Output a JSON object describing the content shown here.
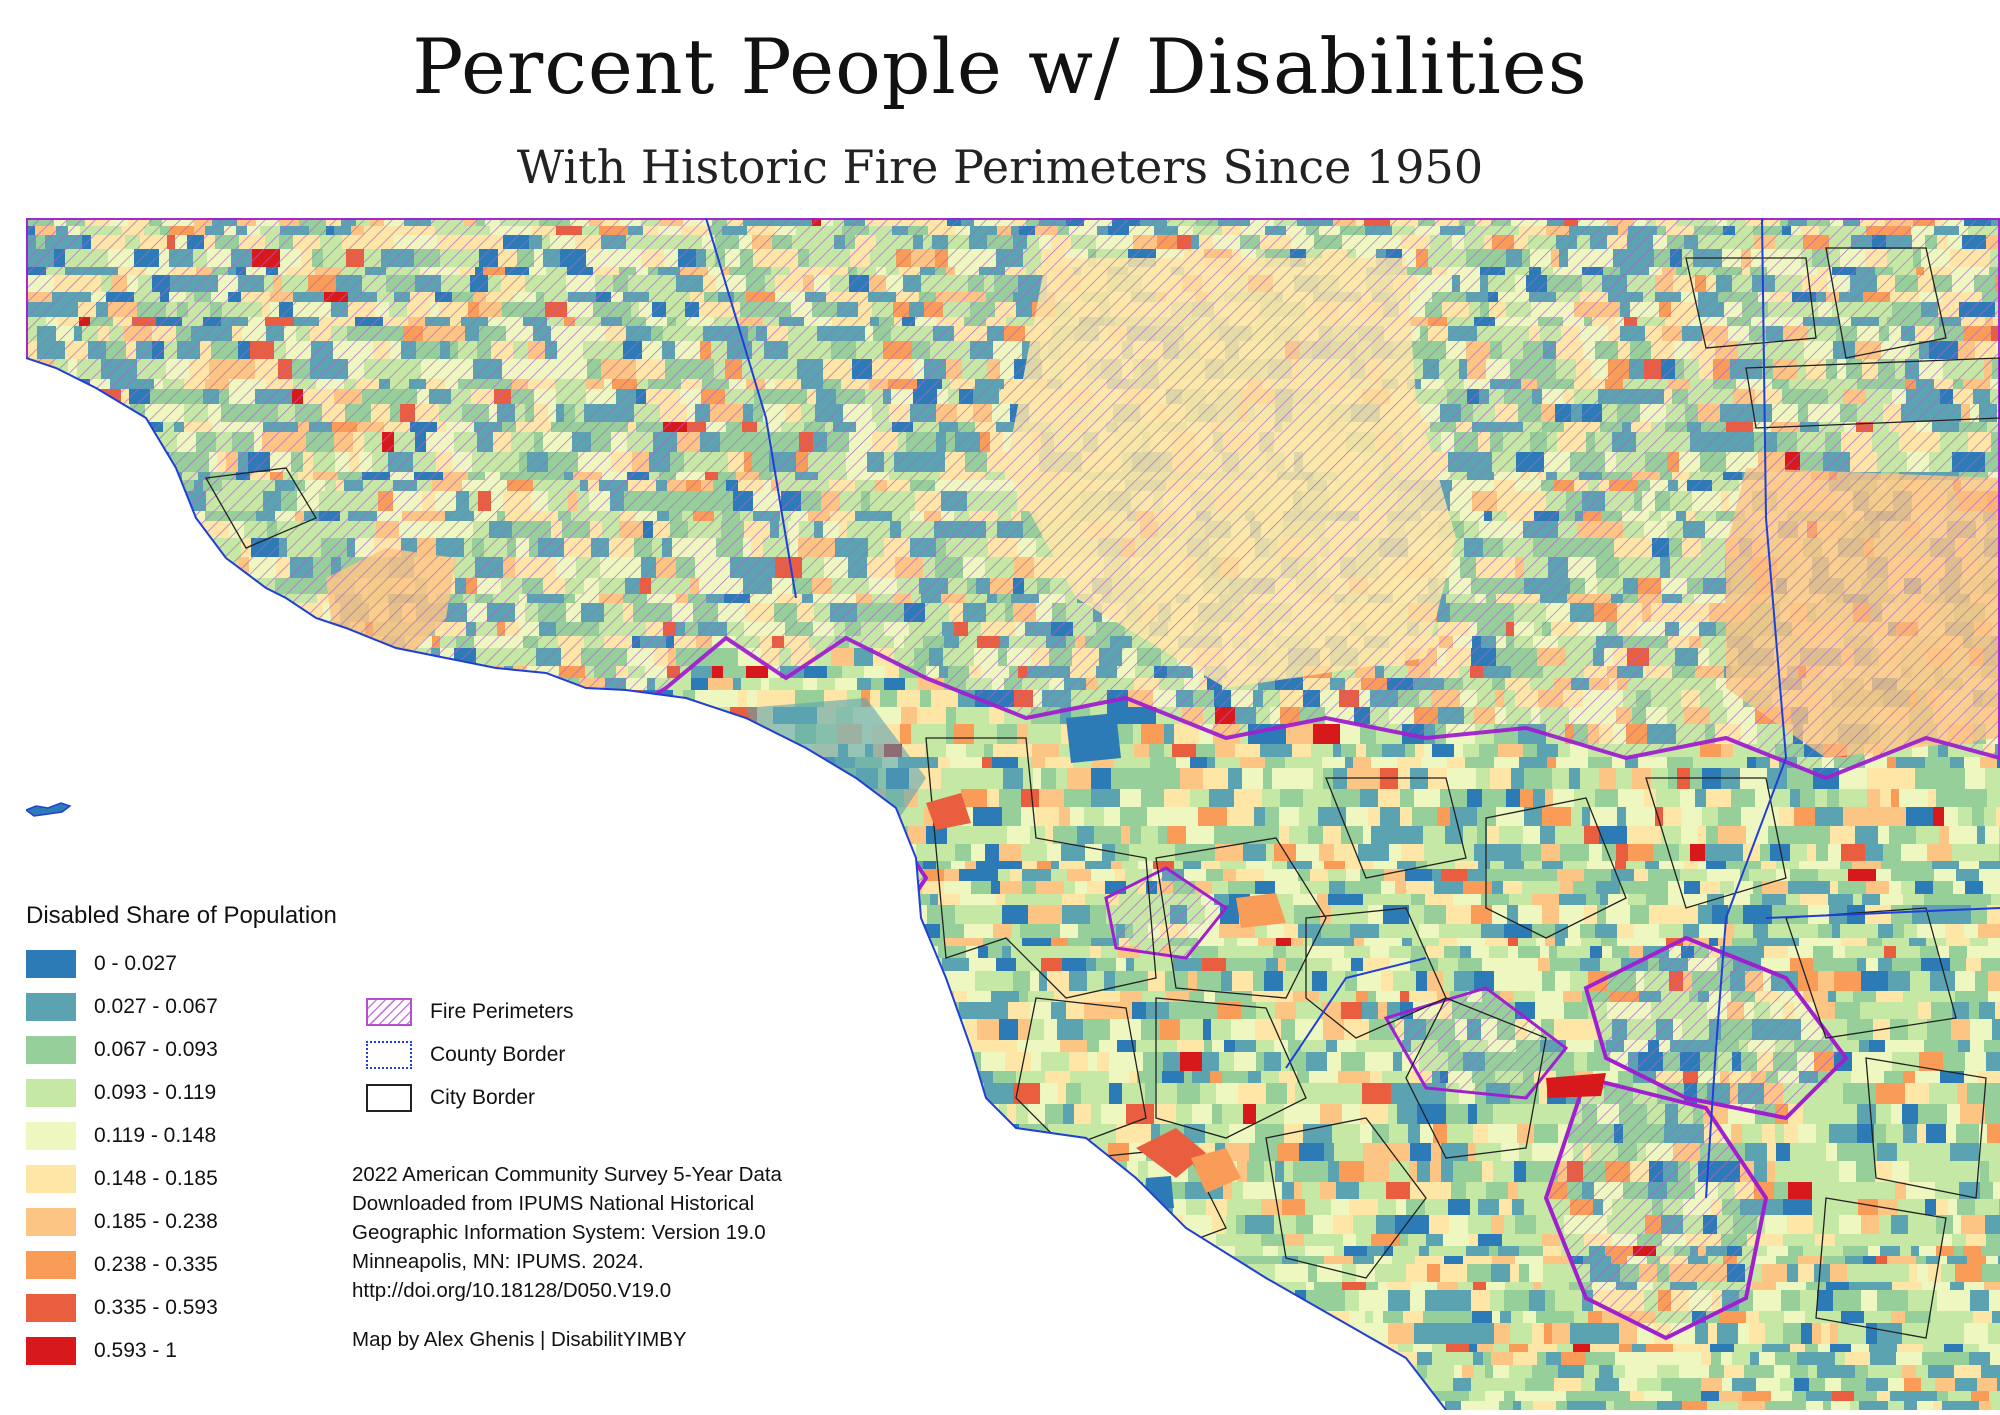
{
  "title": "Percent People w/ Disabilities",
  "subtitle": "With Historic Fire Perimeters Since 1950",
  "legend": {
    "title": "Disabled Share of Population",
    "classes": [
      {
        "label": "0 - 0.027",
        "color": "#2c7bb6"
      },
      {
        "label": "0.027 - 0.067",
        "color": "#5ba3b0"
      },
      {
        "label": "0.067 - 0.093",
        "color": "#96cf9a"
      },
      {
        "label": "0.093 - 0.119",
        "color": "#c5e8a4"
      },
      {
        "label": "0.119 - 0.148",
        "color": "#eef7c0"
      },
      {
        "label": "0.148 - 0.185",
        "color": "#fde6a6"
      },
      {
        "label": "0.185 - 0.238",
        "color": "#fdc584"
      },
      {
        "label": "0.238 - 0.335",
        "color": "#f99c58"
      },
      {
        "label": "0.335 - 0.593",
        "color": "#e85e3e"
      },
      {
        "label": "0.593 - 1",
        "color": "#d7191c"
      }
    ]
  },
  "overlay_legend": {
    "fire": "Fire Perimeters",
    "county": "County Border",
    "city": "City Border",
    "fire_color": "#a020d0",
    "county_color": "#1f3fd6",
    "city_color": "#222222"
  },
  "source": {
    "lines": [
      "2022 American Community Survey 5-Year Data",
      "Downloaded from IPUMS National Historical",
      "Geographic Information System: Version 19.0",
      "Minneapolis, MN: IPUMS. 2024.",
      "http://doi.org/10.18128/D050.V19.0"
    ]
  },
  "credit": "Map by Alex Ghenis | DisabilitYIMBY"
}
